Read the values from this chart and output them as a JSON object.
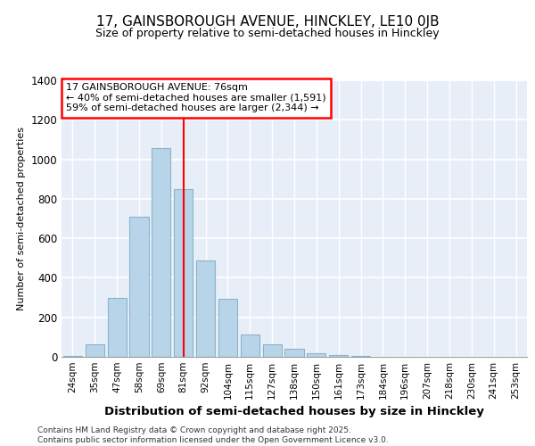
{
  "title1": "17, GAINSBOROUGH AVENUE, HINCKLEY, LE10 0JB",
  "title2": "Size of property relative to semi-detached houses in Hinckley",
  "xlabel": "Distribution of semi-detached houses by size in Hinckley",
  "ylabel": "Number of semi-detached properties",
  "categories": [
    "24sqm",
    "35sqm",
    "47sqm",
    "58sqm",
    "69sqm",
    "81sqm",
    "92sqm",
    "104sqm",
    "115sqm",
    "127sqm",
    "138sqm",
    "150sqm",
    "161sqm",
    "173sqm",
    "184sqm",
    "196sqm",
    "207sqm",
    "218sqm",
    "230sqm",
    "241sqm",
    "253sqm"
  ],
  "values": [
    5,
    65,
    300,
    710,
    1055,
    850,
    490,
    295,
    115,
    65,
    40,
    20,
    10,
    5,
    2,
    1,
    0,
    0,
    0,
    0,
    0
  ],
  "bar_color": "#b8d4e8",
  "bar_edge_color": "#8ab4cc",
  "red_line_x": 5,
  "annotation_text": "17 GAINSBOROUGH AVENUE: 76sqm\n← 40% of semi-detached houses are smaller (1,591)\n59% of semi-detached houses are larger (2,344) →",
  "footer": "Contains HM Land Registry data © Crown copyright and database right 2025.\nContains public sector information licensed under the Open Government Licence v3.0.",
  "ylim": [
    0,
    1400
  ],
  "yticks": [
    0,
    200,
    400,
    600,
    800,
    1000,
    1200,
    1400
  ],
  "bg_color": "#e8eef8",
  "grid_color": "#ffffff",
  "title_fontsize": 11,
  "subtitle_fontsize": 9
}
